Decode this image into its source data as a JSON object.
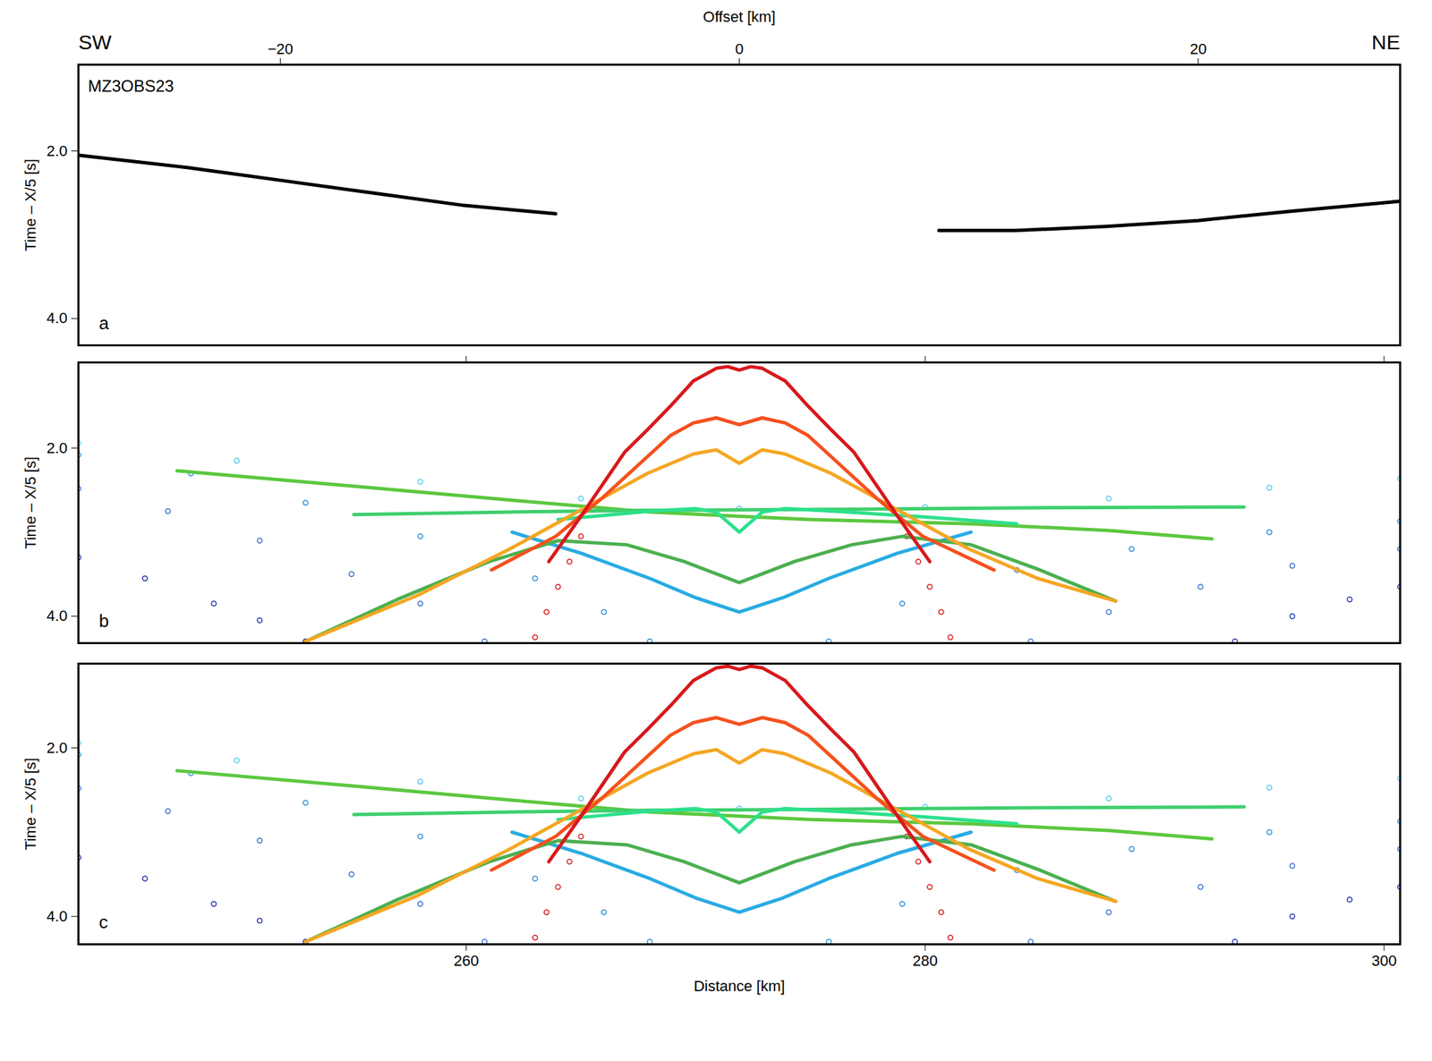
{
  "chart_data": [
    {
      "type": "line",
      "left_label": "SW",
      "right_label": "NE",
      "station": "MZ3OBS23",
      "panel": "a",
      "xlabel": "Offset [km]",
      "ylabel": "Time – X/5 [s]",
      "xlim": [
        -28.8,
        28.8
      ],
      "xticks": [
        -20,
        0,
        20
      ],
      "ylim": [
        4.32,
        0.97
      ],
      "yticks": [
        2,
        4
      ],
      "series": [
        {
          "color": "#000000",
          "line_style": "solid",
          "x": [
            -28.8,
            -24,
            -20,
            -16,
            -12,
            -8
          ],
          "values": [
            2.05,
            2.2,
            2.35,
            2.5,
            2.65,
            2.75
          ]
        },
        {
          "color": "#000000",
          "line_style": "solid",
          "x": [
            8.7,
            12,
            16,
            20,
            24,
            28.8
          ],
          "values": [
            2.95,
            2.95,
            2.9,
            2.83,
            2.72,
            2.6
          ]
        }
      ]
    },
    {
      "type": "line",
      "panel": "b",
      "ylabel": "Time – X/5 [s]",
      "tick_labels": "y",
      "xlim": [
        243.1,
        300.7
      ],
      "xticks": [
        260,
        280,
        300
      ],
      "ylim": [
        4.32,
        0.98
      ],
      "yticks": [
        2,
        4
      ],
      "series": [
        {
          "color": "#5bc8ef",
          "marker": "circle",
          "x": [
            243.1,
            250,
            258,
            265,
            271.9,
            280,
            288,
            295,
            300.7
          ],
          "values": [
            1.94,
            2.15,
            2.4,
            2.6,
            2.72,
            2.7,
            2.6,
            2.47,
            2.36
          ]
        },
        {
          "color": "#2b8fd6",
          "marker": "circle",
          "x": [
            243.1,
            248,
            253,
            258,
            263,
            266,
            268
          ],
          "values": [
            2.08,
            2.3,
            2.65,
            3.05,
            3.55,
            3.95,
            4.3
          ]
        },
        {
          "color": "#2b8fd6",
          "marker": "circle",
          "x": [
            275.8,
            279,
            284,
            289,
            295,
            300.7
          ],
          "values": [
            4.3,
            3.85,
            3.45,
            3.2,
            3.0,
            2.87
          ]
        },
        {
          "color": "#3a6fcc",
          "marker": "circle",
          "x": [
            243.1,
            247,
            251,
            255,
            258,
            260.8
          ],
          "values": [
            2.48,
            2.75,
            3.1,
            3.5,
            3.85,
            4.3
          ]
        },
        {
          "color": "#3a6fcc",
          "marker": "circle",
          "x": [
            284.6,
            288,
            292,
            296,
            300.7
          ],
          "values": [
            4.3,
            3.95,
            3.65,
            3.4,
            3.2
          ]
        },
        {
          "color": "#2233aa",
          "marker": "circle",
          "x": [
            243.1,
            246,
            249,
            251,
            253
          ],
          "values": [
            3.3,
            3.55,
            3.85,
            4.05,
            4.3
          ]
        },
        {
          "color": "#2233aa",
          "marker": "circle",
          "x": [
            293.5,
            296,
            298.5,
            300.7
          ],
          "values": [
            4.3,
            4.0,
            3.8,
            3.65
          ]
        },
        {
          "color": "#d7191c",
          "marker": "circle",
          "x": [
            265.0,
            264.5,
            264.0,
            263.5,
            263.0,
            279.2,
            279.7,
            280.2,
            280.7,
            281.1
          ],
          "values": [
            3.05,
            3.35,
            3.65,
            3.95,
            4.25,
            3.05,
            3.35,
            3.65,
            3.95,
            4.25
          ]
        },
        {
          "color": "#29abe2",
          "line_style": "solid",
          "x": [
            262,
            265,
            268,
            270,
            271.9,
            273.8,
            275.8,
            278.8,
            282
          ],
          "values": [
            3.0,
            3.25,
            3.55,
            3.78,
            3.95,
            3.78,
            3.55,
            3.25,
            3.0
          ]
        },
        {
          "color": "#4caf50",
          "line_style": "solid",
          "x": [
            253.0,
            257.0,
            261.0,
            264.0,
            267.0,
            269.5,
            271.9,
            274.3,
            276.8,
            279.0,
            282.0,
            285.0,
            288.3
          ],
          "values": [
            4.3,
            3.8,
            3.35,
            3.1,
            3.15,
            3.35,
            3.6,
            3.35,
            3.15,
            3.05,
            3.15,
            3.45,
            3.82
          ]
        },
        {
          "color": "#5cc840",
          "line_style": "solid",
          "x": [
            247.4,
            255,
            262,
            268,
            275,
            282,
            288,
            292.5
          ],
          "values": [
            2.27,
            2.45,
            2.62,
            2.76,
            2.85,
            2.9,
            2.98,
            3.08
          ]
        },
        {
          "color": "#3ecf6e",
          "line_style": "solid",
          "x": [
            255.1,
            262,
            268,
            275,
            285,
            293.9
          ],
          "values": [
            2.79,
            2.76,
            2.74,
            2.73,
            2.71,
            2.7
          ]
        },
        {
          "color": "#2de08c",
          "line_style": "solid",
          "x": [
            264.0,
            266.0,
            268.0,
            270.0,
            270.9,
            271.9,
            272.9,
            273.9,
            276.0,
            280.0,
            284.0
          ],
          "values": [
            2.85,
            2.8,
            2.75,
            2.72,
            2.76,
            3.0,
            2.76,
            2.72,
            2.75,
            2.82,
            2.9
          ]
        },
        {
          "color": "#f5a623",
          "line_style": "solid",
          "x": [
            253.0,
            257.9,
            261.9,
            263.9,
            265.9,
            267.9,
            269.9,
            270.9,
            271.9,
            272.9,
            273.9,
            275.9,
            277.9,
            279.9,
            281.9,
            284.9,
            288.3
          ],
          "values": [
            4.3,
            3.75,
            3.2,
            2.9,
            2.6,
            2.3,
            2.07,
            2.02,
            2.18,
            2.02,
            2.07,
            2.3,
            2.6,
            2.9,
            3.2,
            3.55,
            3.82
          ]
        },
        {
          "color": "#f4511e",
          "line_style": "solid",
          "x": [
            261.1,
            263.9,
            265.9,
            267.9,
            268.9,
            269.9,
            270.9,
            271.9,
            272.9,
            273.9,
            274.9,
            275.9,
            277.9,
            279.9,
            283.0
          ],
          "values": [
            3.45,
            3.05,
            2.6,
            2.1,
            1.85,
            1.7,
            1.64,
            1.72,
            1.64,
            1.7,
            1.85,
            2.1,
            2.6,
            3.05,
            3.45
          ]
        },
        {
          "color": "#d7191c",
          "line_style": "solid",
          "x": [
            263.6,
            264.9,
            265.9,
            266.9,
            267.9,
            268.9,
            269.9,
            270.9,
            271.4,
            271.9,
            272.4,
            272.9,
            273.9,
            274.9,
            275.9,
            276.9,
            277.9,
            278.9,
            280.2
          ],
          "values": [
            3.35,
            2.85,
            2.45,
            2.05,
            1.78,
            1.5,
            1.2,
            1.05,
            1.03,
            1.07,
            1.03,
            1.05,
            1.2,
            1.5,
            1.78,
            2.05,
            2.45,
            2.85,
            3.35
          ]
        }
      ]
    },
    {
      "type": "line",
      "panel": "c",
      "xlabel": "Distance [km]",
      "ylabel": "Time – X/5 [s]",
      "xlim": [
        243.1,
        300.7
      ],
      "xticks": [
        260,
        280,
        300
      ],
      "ylim": [
        4.33,
        1.0
      ],
      "yticks": [
        2,
        4
      ],
      "series": [
        {
          "color": "#5bc8ef",
          "marker": "circle",
          "x": [
            243.1,
            250,
            258,
            265,
            271.9,
            280,
            288,
            295,
            300.7
          ],
          "values": [
            1.94,
            2.15,
            2.4,
            2.6,
            2.72,
            2.7,
            2.6,
            2.47,
            2.36
          ]
        },
        {
          "color": "#2b8fd6",
          "marker": "circle",
          "x": [
            243.1,
            248,
            253,
            258,
            263,
            266,
            268
          ],
          "values": [
            2.08,
            2.3,
            2.65,
            3.05,
            3.55,
            3.95,
            4.3
          ]
        },
        {
          "color": "#2b8fd6",
          "marker": "circle",
          "x": [
            275.8,
            279,
            284,
            289,
            295,
            300.7
          ],
          "values": [
            4.3,
            3.85,
            3.45,
            3.2,
            3.0,
            2.87
          ]
        },
        {
          "color": "#3a6fcc",
          "marker": "circle",
          "x": [
            243.1,
            247,
            251,
            255,
            258,
            260.8
          ],
          "values": [
            2.48,
            2.75,
            3.1,
            3.5,
            3.85,
            4.3
          ]
        },
        {
          "color": "#3a6fcc",
          "marker": "circle",
          "x": [
            284.6,
            288,
            292,
            296,
            300.7
          ],
          "values": [
            4.3,
            3.95,
            3.65,
            3.4,
            3.2
          ]
        },
        {
          "color": "#2233aa",
          "marker": "circle",
          "x": [
            243.1,
            246,
            249,
            251,
            253
          ],
          "values": [
            3.3,
            3.55,
            3.85,
            4.05,
            4.3
          ]
        },
        {
          "color": "#2233aa",
          "marker": "circle",
          "x": [
            293.5,
            296,
            298.5,
            300.7
          ],
          "values": [
            4.3,
            4.0,
            3.8,
            3.65
          ]
        },
        {
          "color": "#d7191c",
          "marker": "circle",
          "x": [
            265.0,
            264.5,
            264.0,
            263.5,
            263.0,
            279.2,
            279.7,
            280.2,
            280.7,
            281.1
          ],
          "values": [
            3.05,
            3.35,
            3.65,
            3.95,
            4.25,
            3.05,
            3.35,
            3.65,
            3.95,
            4.25
          ]
        },
        {
          "color": "#29abe2",
          "line_style": "solid",
          "x": [
            262,
            265,
            268,
            270,
            271.9,
            273.8,
            275.8,
            278.8,
            282
          ],
          "values": [
            3.0,
            3.25,
            3.55,
            3.78,
            3.95,
            3.78,
            3.55,
            3.25,
            3.0
          ]
        },
        {
          "color": "#4caf50",
          "line_style": "solid",
          "x": [
            253.0,
            257.0,
            261.0,
            264.0,
            267.0,
            269.5,
            271.9,
            274.3,
            276.8,
            279.0,
            282.0,
            285.0,
            288.3
          ],
          "values": [
            4.3,
            3.8,
            3.35,
            3.1,
            3.15,
            3.35,
            3.6,
            3.35,
            3.15,
            3.05,
            3.15,
            3.45,
            3.82
          ]
        },
        {
          "color": "#5cc840",
          "line_style": "solid",
          "x": [
            247.4,
            255,
            262,
            268,
            275,
            282,
            288,
            292.5
          ],
          "values": [
            2.27,
            2.45,
            2.62,
            2.76,
            2.85,
            2.9,
            2.98,
            3.08
          ]
        },
        {
          "color": "#3ecf6e",
          "line_style": "solid",
          "x": [
            255.1,
            262,
            268,
            275,
            285,
            293.9
          ],
          "values": [
            2.79,
            2.76,
            2.74,
            2.73,
            2.71,
            2.7
          ]
        },
        {
          "color": "#2de08c",
          "line_style": "solid",
          "x": [
            264.0,
            266.0,
            268.0,
            270.0,
            270.9,
            271.9,
            272.9,
            273.9,
            276.0,
            280.0,
            284.0
          ],
          "values": [
            2.85,
            2.8,
            2.75,
            2.72,
            2.76,
            3.0,
            2.76,
            2.72,
            2.75,
            2.82,
            2.9
          ]
        },
        {
          "color": "#f5a623",
          "line_style": "solid",
          "x": [
            253.0,
            257.9,
            261.9,
            263.9,
            265.9,
            267.9,
            269.9,
            270.9,
            271.9,
            272.9,
            273.9,
            275.9,
            277.9,
            279.9,
            281.9,
            284.9,
            288.3
          ],
          "values": [
            4.3,
            3.75,
            3.2,
            2.9,
            2.6,
            2.3,
            2.07,
            2.02,
            2.18,
            2.02,
            2.07,
            2.3,
            2.6,
            2.9,
            3.2,
            3.55,
            3.82
          ]
        },
        {
          "color": "#f4511e",
          "line_style": "solid",
          "x": [
            261.1,
            263.9,
            265.9,
            267.9,
            268.9,
            269.9,
            270.9,
            271.9,
            272.9,
            273.9,
            274.9,
            275.9,
            277.9,
            279.9,
            283.0
          ],
          "values": [
            3.45,
            3.05,
            2.6,
            2.1,
            1.85,
            1.7,
            1.64,
            1.72,
            1.64,
            1.7,
            1.85,
            2.1,
            2.6,
            3.05,
            3.45
          ]
        },
        {
          "color": "#d7191c",
          "line_style": "solid",
          "x": [
            263.6,
            264.9,
            265.9,
            266.9,
            267.9,
            268.9,
            269.9,
            270.9,
            271.4,
            271.9,
            272.4,
            272.9,
            273.9,
            274.9,
            275.9,
            276.9,
            277.9,
            278.9,
            280.2
          ],
          "values": [
            3.35,
            2.85,
            2.45,
            2.05,
            1.78,
            1.5,
            1.2,
            1.05,
            1.03,
            1.07,
            1.03,
            1.05,
            1.2,
            1.5,
            1.78,
            2.05,
            2.45,
            2.85,
            3.35
          ]
        }
      ]
    }
  ]
}
